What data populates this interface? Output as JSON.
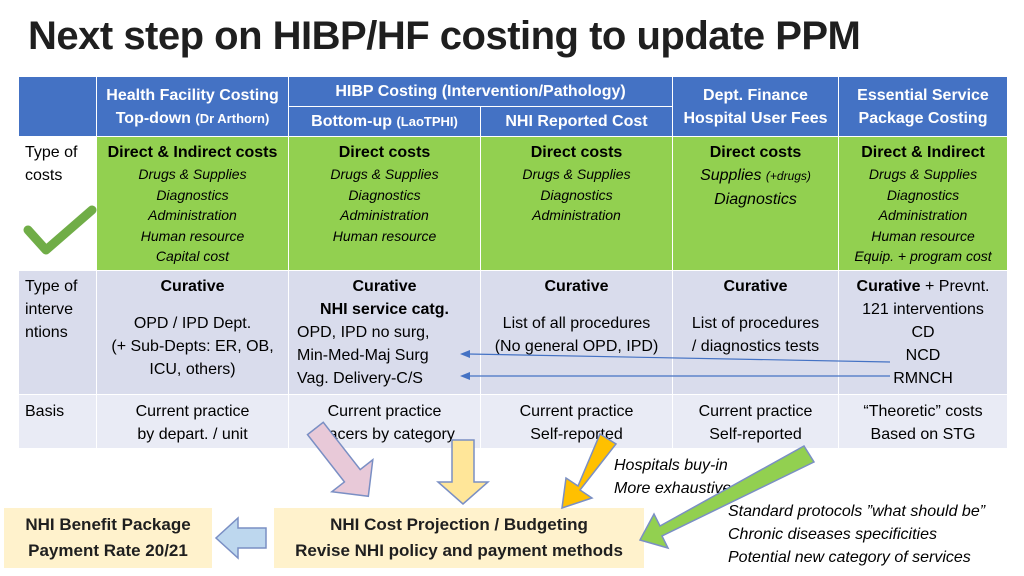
{
  "title": "Next step on HIBP/HF costing to update PPM",
  "colors": {
    "header": "#4472c4",
    "green": "#92d050",
    "lavender": "#d9dcec",
    "yellow_box": "#fff2cc",
    "arrow_yellow": "#ffe699",
    "arrow_blue": "#bdd7ee",
    "arrow_green": "#92d050",
    "arrow_gold": "#ffc000"
  },
  "table": {
    "headers": {
      "hf_line1": "Health Facility Costing",
      "hf_line2": "Top-down",
      "hf_line2_small": "(Dr Arthorn)",
      "hibp": "HIBP Costing (Intervention/Pathology)",
      "bottom_up": "Bottom-up",
      "bottom_up_small": "(LaoTPHI)",
      "nhi_reported": "NHI Reported Cost",
      "dept_line1": "Dept. Finance",
      "dept_line2": "Hospital User Fees",
      "esp_line1": "Essential Service",
      "esp_line2": "Package Costing"
    },
    "row_costs": {
      "label_line1": "Type of",
      "label_line2": "costs",
      "hf_title": "Direct & Indirect costs",
      "hf_items": [
        "Drugs & Supplies",
        "Diagnostics",
        "Administration",
        "Human resource",
        "Capital cost"
      ],
      "bu_title": "Direct costs",
      "bu_items": [
        "Drugs & Supplies",
        "Diagnostics",
        "Administration",
        "Human resource"
      ],
      "nhi_title": "Direct costs",
      "nhi_items": [
        "Drugs & Supplies",
        "Diagnostics",
        "Administration"
      ],
      "dept_title": "Direct costs",
      "dept_item1": "Supplies",
      "dept_item1_small": "(+drugs)",
      "dept_item2": "Diagnostics",
      "esp_title": "Direct & Indirect",
      "esp_items": [
        "Drugs & Supplies",
        "Diagnostics",
        "Administration",
        "Human resource",
        "Equip. + program cost"
      ]
    },
    "row_interventions": {
      "label_lines": [
        "Type of",
        "interve",
        "ntions"
      ],
      "hf_title": "Curative",
      "hf_lines": [
        "OPD / IPD Dept.",
        "(+ Sub-Depts: ER, OB,",
        "ICU, others)"
      ],
      "bu_title": "Curative",
      "bu_subtitle": "NHI service catg.",
      "bu_lines": [
        "OPD, IPD no surg,",
        "Min-Med-Maj Surg",
        "Vag. Delivery-C/S"
      ],
      "nhi_title": "Curative",
      "nhi_lines": [
        "List of all procedures",
        "(No general OPD, IPD)"
      ],
      "dept_title": "Curative",
      "dept_lines": [
        "List of procedures",
        "/ diagnostics tests"
      ],
      "esp_title": "Curative",
      "esp_title_rest": "+ Prevnt.",
      "esp_lines": [
        "121 interventions",
        "CD",
        "NCD",
        "RMNCH"
      ]
    },
    "row_basis": {
      "label": "Basis",
      "hf_lines": [
        "Current practice",
        "by depart. / unit"
      ],
      "bu_lines": [
        "Current practice",
        "Tracers by category"
      ],
      "nhi_lines": [
        "Current practice",
        "Self-reported"
      ],
      "dept_lines": [
        "Current practice",
        "Self-reported"
      ],
      "esp_lines": [
        "“Theoretic” costs",
        "Based on STG"
      ]
    }
  },
  "notes": {
    "hospitals": [
      "Hospitals buy-in",
      "More exhaustive"
    ],
    "standard": [
      "Standard protocols ”what should be”",
      "Chronic diseases specificities",
      "Potential new category of services"
    ]
  },
  "boxes": {
    "benefit": [
      "NHI Benefit Package",
      "Payment Rate 20/21"
    ],
    "projection": [
      "NHI Cost Projection / Budgeting",
      "Revise NHI policy and payment methods"
    ]
  },
  "icons": {
    "check": "checkmark-icon"
  }
}
